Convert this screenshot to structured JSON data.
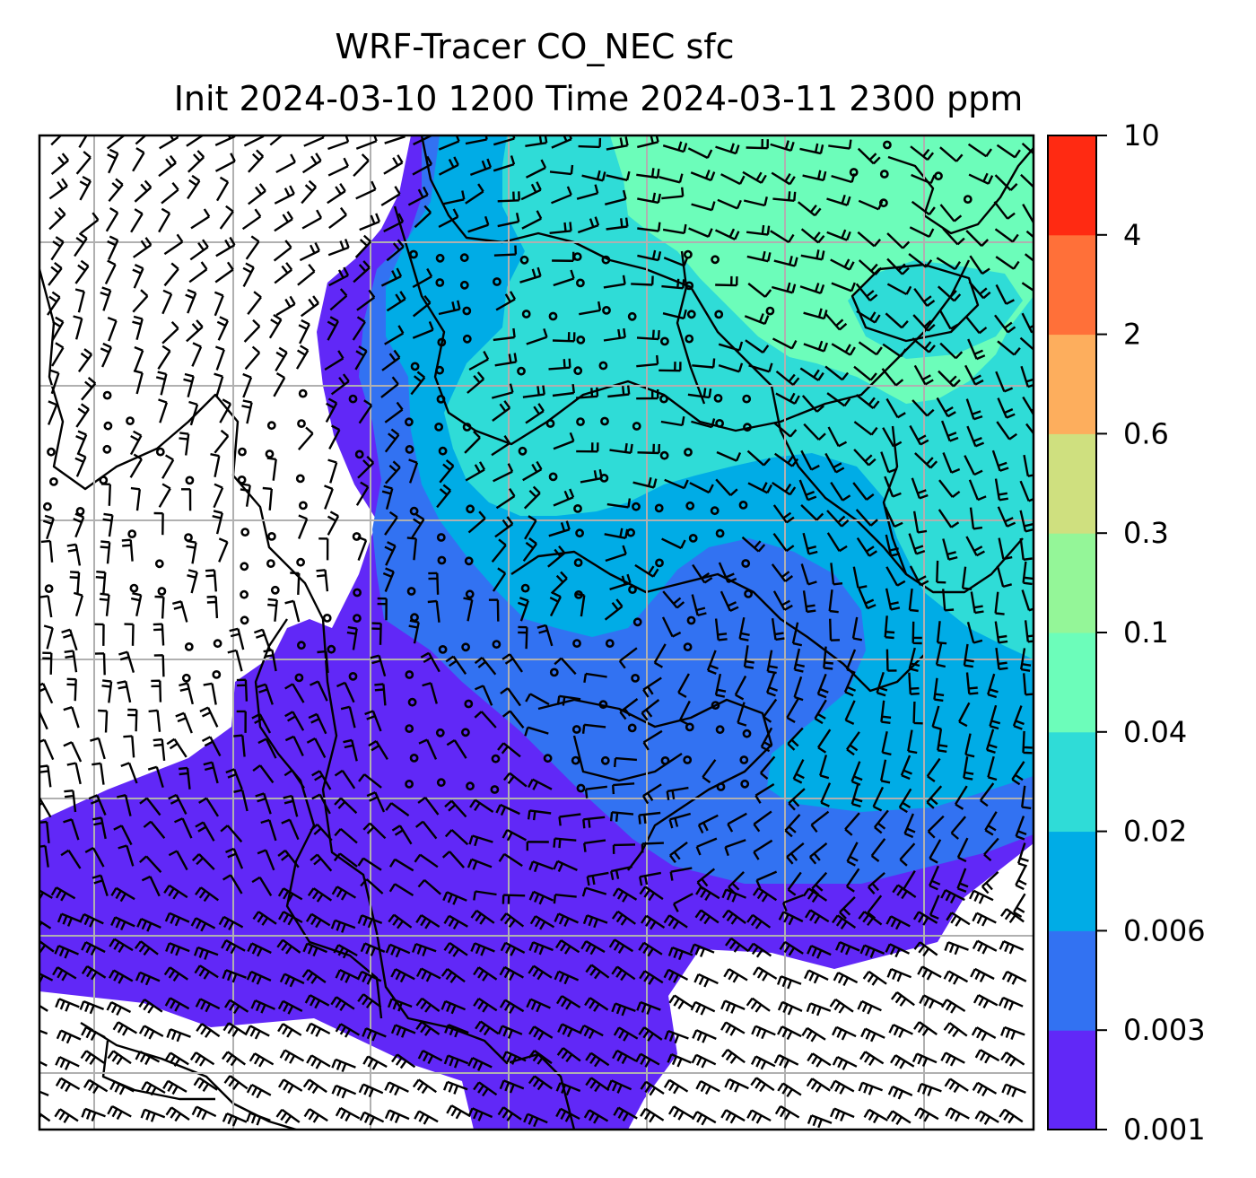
{
  "title": {
    "line1": "WRF-Tracer CO_NEC sfc",
    "line2": "Init 2024-03-10 1200 Time 2024-03-11 2300 ppm"
  },
  "colorbar": {
    "levels": [
      "0.001",
      "0.003",
      "0.006",
      "0.02",
      "0.04",
      "0.1",
      "0.3",
      "0.6",
      "2",
      "4",
      "10"
    ],
    "colors": [
      "#6128f7",
      "#3272f2",
      "#00ace6",
      "#2fdcd7",
      "#6cfdba",
      "#94f698",
      "#cfe07f",
      "#fdae5d",
      "#ff7039",
      "#ff2a12"
    ]
  },
  "map": {
    "style": {
      "barb_color": "#000000",
      "coast_color": "#000000",
      "grid_color": "#b0b0b0",
      "below_min_color": "#ffffff"
    },
    "gridlines": "on",
    "wind_barbs": "on",
    "calm_wind_circles": "on"
  }
}
